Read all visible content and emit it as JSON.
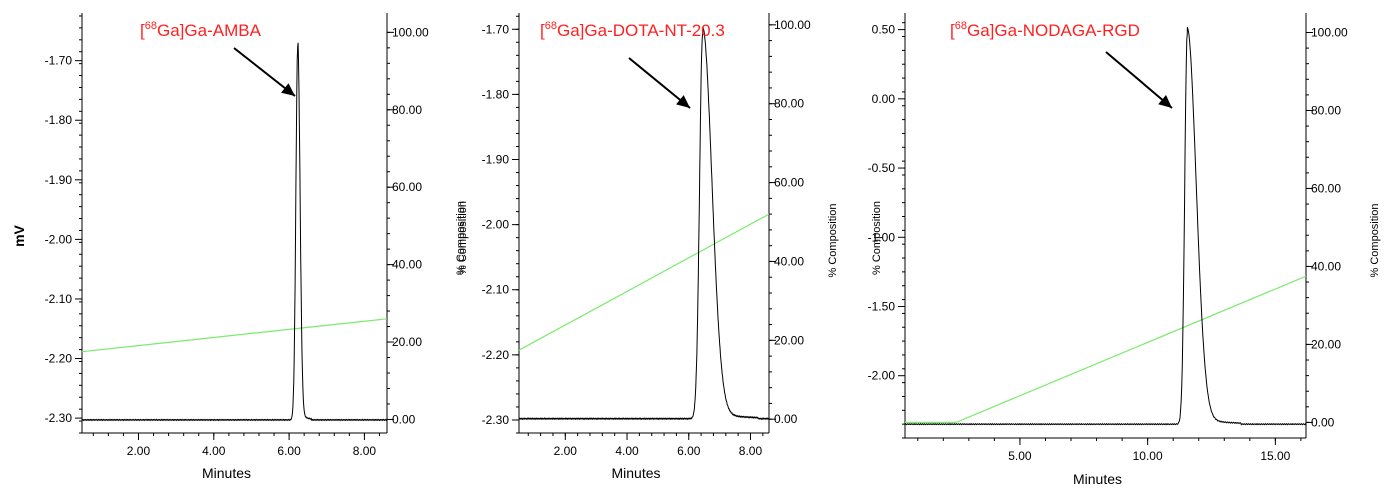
{
  "y_unit_label": "mV",
  "right_axis_label": "% Composition",
  "colors": {
    "trace": "#000000",
    "gradient": "#7cea6e",
    "title": "#ff2020",
    "axis": "#000000"
  },
  "chart_data": [
    {
      "type": "line",
      "title_prefix": "[",
      "title_sup": "68",
      "title_rest": "Ga]Ga-AMBA",
      "xlabel": "Minutes",
      "ylabel": "mV",
      "y2label": "% Composition",
      "xlim": [
        0.5,
        8.6
      ],
      "ylim": [
        -2.325,
        -1.62
      ],
      "y2lim": [
        -3.5,
        105
      ],
      "xticks": [
        2.0,
        4.0,
        6.0,
        8.0
      ],
      "xtick_labels": [
        "2.00",
        "4.00",
        "6.00",
        "8.00"
      ],
      "yticks": [
        -1.7,
        -1.8,
        -1.9,
        -2.0,
        -2.1,
        -2.2,
        -2.3
      ],
      "ytick_labels": [
        "-1.70",
        "-1.80",
        "-1.90",
        "-2.00",
        "-2.10",
        "-2.20",
        "-2.30"
      ],
      "y2ticks": [
        100,
        80,
        60,
        40,
        20,
        0
      ],
      "y2tick_labels": [
        "100.00",
        "80.00",
        "60.00",
        "40.00",
        "20.00",
        "0.00"
      ],
      "baseline_mv": -2.303,
      "peak": {
        "rt": 6.23,
        "apex_mv": -1.675,
        "rise_width": 0.05,
        "tail_width": 0.06
      },
      "gradient": {
        "x": [
          0.5,
          8.6
        ],
        "pct": [
          17.5,
          26.0
        ]
      },
      "annotation": "arrow-to-peak"
    },
    {
      "type": "line",
      "title_prefix": "[",
      "title_sup": "68",
      "title_rest": "Ga]Ga-DOTA-NT-20.3",
      "xlabel": "Minutes",
      "ylabel": "",
      "y2label": "% Composition",
      "xlim": [
        0.5,
        8.6
      ],
      "ylim": [
        -2.32,
        -1.675
      ],
      "y2lim": [
        -3.5,
        103
      ],
      "xticks": [
        2.0,
        4.0,
        6.0,
        8.0
      ],
      "xtick_labels": [
        "2.00",
        "4.00",
        "6.00",
        "8.00"
      ],
      "yticks": [
        -1.7,
        -1.8,
        -1.9,
        -2.0,
        -2.1,
        -2.2,
        -2.3
      ],
      "ytick_labels": [
        "-1.70",
        "-1.80",
        "-1.90",
        "-2.00",
        "-2.10",
        "-2.20",
        "-2.30"
      ],
      "y2ticks": [
        100,
        80,
        60,
        40,
        20,
        0
      ],
      "y2tick_labels": [
        "100.00",
        "80.00",
        "60.00",
        "40.00",
        "20.00",
        "0.00"
      ],
      "baseline_mv": -2.298,
      "peak": {
        "rt": 6.45,
        "apex_mv": -1.708,
        "rise_width": 0.1,
        "tail_width": 0.3
      },
      "gradient": {
        "x": [
          0.5,
          8.6
        ],
        "pct": [
          17.5,
          52.0
        ]
      },
      "annotation": "arrow-to-peak"
    },
    {
      "type": "line",
      "title_prefix": "[",
      "title_sup": "68",
      "title_rest": "Ga]Ga-NODAGA-RGD",
      "xlabel": "Minutes",
      "ylabel": "% Composition",
      "y2label": "% Composition",
      "xlim": [
        0.5,
        16.2
      ],
      "ylim": [
        -2.45,
        0.62
      ],
      "y2lim": [
        -4,
        105
      ],
      "xticks": [
        5.0,
        10.0,
        15.0
      ],
      "xtick_labels": [
        "5.00",
        "10.00",
        "15.00"
      ],
      "yticks": [
        0.5,
        0.0,
        -0.5,
        -1.0,
        -1.5,
        -2.0
      ],
      "ytick_labels": [
        "0.50",
        "0.00",
        "-0.50",
        "-1.00",
        "-1.50",
        "-2.00"
      ],
      "y2ticks": [
        100,
        80,
        60,
        40,
        20,
        0
      ],
      "y2tick_labels": [
        "100.00",
        "80.00",
        "60.00",
        "40.00",
        "20.00",
        "0.00"
      ],
      "baseline_mv": -2.35,
      "peak": {
        "rt": 11.55,
        "apex_mv": 0.46,
        "rise_width": 0.1,
        "tail_width": 0.35
      },
      "gradient": {
        "x": [
          0.5,
          2.5,
          16.2
        ],
        "pct": [
          0.0,
          0.0,
          37.5
        ]
      },
      "annotation": "arrow-to-peak"
    }
  ]
}
